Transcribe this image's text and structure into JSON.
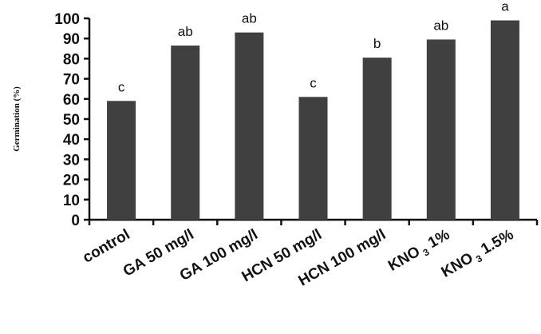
{
  "chart_data": {
    "type": "bar",
    "ylabel": "Germination (%)",
    "xlabel": "",
    "ylim": [
      0,
      100
    ],
    "yticks": [
      0,
      10,
      20,
      30,
      40,
      50,
      60,
      70,
      80,
      90,
      100
    ],
    "grid": false,
    "categories": [
      {
        "label": "control"
      },
      {
        "label": "GA 50 mg/l"
      },
      {
        "label": "GA 100 mg/l"
      },
      {
        "label": "HCN 50 mg/l"
      },
      {
        "label": "HCN 100 mg/l"
      },
      {
        "label": "KNO3 1%",
        "prefix": "KNO",
        "subscript": "3",
        "suffix": " 1%"
      },
      {
        "label": "KNO3 1.5%",
        "prefix": "KNO",
        "subscript": "3",
        "suffix": " 1.5%"
      }
    ],
    "values": [
      59,
      86.5,
      93,
      61,
      80.5,
      89.5,
      99
    ],
    "significance_letters": [
      "c",
      "ab",
      "ab",
      "c",
      "b",
      "ab",
      "a"
    ],
    "bar_color": "#404040",
    "axis_color": "#111111"
  }
}
